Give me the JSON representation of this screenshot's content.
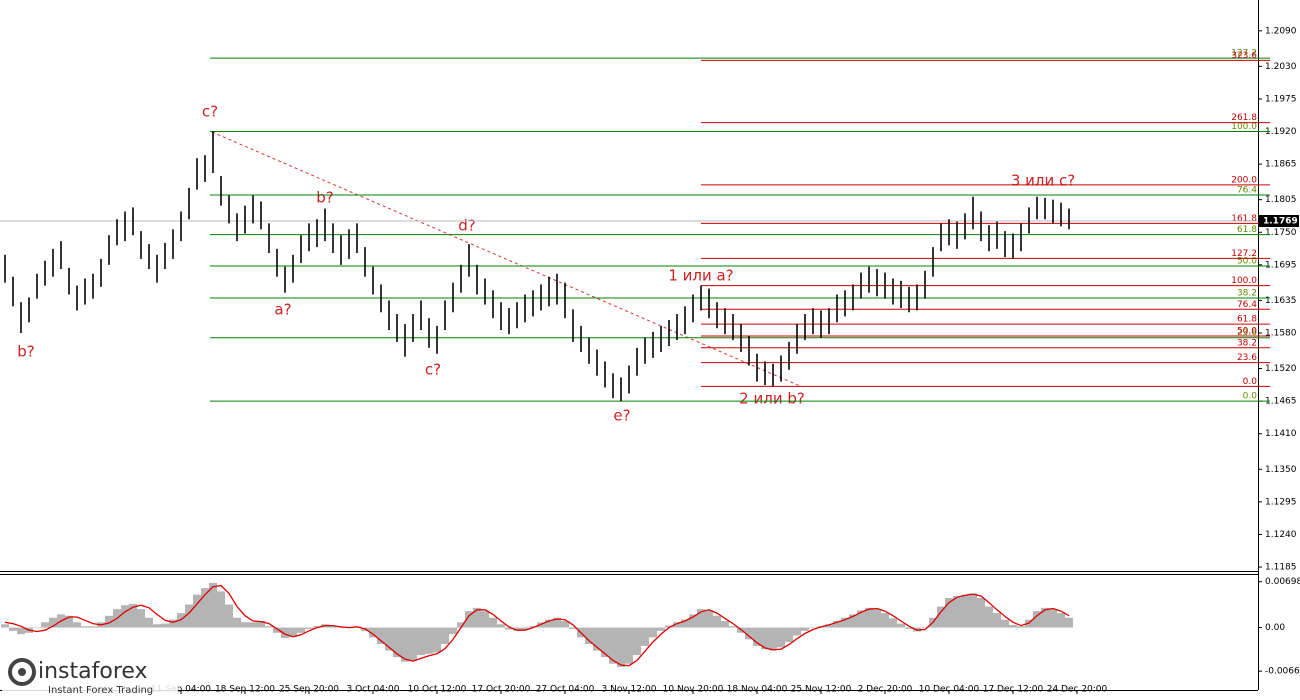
{
  "chart_data": {
    "type": "hlbar",
    "color": "#000000",
    "xlim": [
      -0.625,
      156.625
    ],
    "xticks": [
      {
        "value": 22,
        "label": "11 Sep 04:00"
      },
      {
        "value": 30,
        "label": "18 Sep 12:00"
      },
      {
        "value": 38,
        "label": "25 Sep 20:00"
      },
      {
        "value": 46,
        "label": "3 Oct 04:00"
      },
      {
        "value": 54,
        "label": "10 Oct 12:00"
      },
      {
        "value": 62,
        "label": "17 Oct 20:00"
      },
      {
        "value": 70,
        "label": "27 Oct 04:00"
      },
      {
        "value": 78,
        "label": "3 Nov 12:00"
      },
      {
        "value": 86,
        "label": "10 Nov 20:00"
      },
      {
        "value": 94,
        "label": "18 Nov 04:00"
      },
      {
        "value": 102,
        "label": "25 Nov 12:00"
      },
      {
        "value": 110,
        "label": "2 Dec 20:00"
      },
      {
        "value": 118,
        "label": "10 Dec 04:00"
      },
      {
        "value": 126,
        "label": "17 Dec 12:00"
      },
      {
        "value": 134,
        "label": "24 Dec 20:00"
      }
    ],
    "ylim": [
      1.118,
      1.2142
    ],
    "yticks": [
      {
        "value": 1.209,
        "label": "1.2090"
      },
      {
        "value": 1.203,
        "label": "1.2030"
      },
      1.1975,
      {
        "value": 1.192,
        "label": "1.1920"
      },
      1.1865,
      1.1805,
      {
        "value": 1.175,
        "label": "1.1750"
      },
      1.1695,
      1.1635,
      {
        "value": 1.158,
        "label": "1.1580"
      },
      {
        "value": 1.152,
        "label": "1.1520"
      },
      1.1465,
      {
        "value": 1.141,
        "label": "1.1410"
      },
      {
        "value": 1.135,
        "label": "1.1350"
      },
      1.1295,
      {
        "value": 1.124,
        "label": "1.1240"
      },
      1.1185
    ],
    "current_price": 1.1769,
    "high": [
      1.1712,
      1.1675,
      1.1632,
      1.164,
      1.168,
      1.1702,
      1.1722,
      1.1735,
      1.169,
      1.166,
      1.1672,
      1.168,
      1.1705,
      1.1745,
      1.1772,
      1.1785,
      1.1792,
      1.1752,
      1.173,
      1.1712,
      1.1732,
      1.1755,
      1.1785,
      1.1825,
      1.1875,
      1.188,
      1.192,
      1.1845,
      1.1812,
      1.1782,
      1.1795,
      1.1812,
      1.1802,
      1.1765,
      1.1722,
      1.1692,
      1.1712,
      1.1745,
      1.1765,
      1.1772,
      1.179,
      1.1765,
      1.1745,
      1.1755,
      1.1765,
      1.1725,
      1.1692,
      1.1662,
      1.1635,
      1.1612,
      1.1595,
      1.1612,
      1.1635,
      1.1605,
      1.1592,
      1.1635,
      1.1665,
      1.1695,
      1.173,
      1.1695,
      1.1672,
      1.1652,
      1.1632,
      1.1622,
      1.1632,
      1.1645,
      1.1652,
      1.1662,
      1.1675,
      1.168,
      1.1665,
      1.162,
      1.1592,
      1.1572,
      1.1552,
      1.1532,
      1.1512,
      1.1505,
      1.1525,
      1.1555,
      1.1572,
      1.1582,
      1.1592,
      1.1602,
      1.1612,
      1.1625,
      1.1645,
      1.166,
      1.1655,
      1.1632,
      1.1622,
      1.1612,
      1.1595,
      1.1575,
      1.1545,
      1.1532,
      1.1528,
      1.1542,
      1.1565,
      1.1595,
      1.1612,
      1.1622,
      1.1618,
      1.1622,
      1.1645,
      1.1652,
      1.1662,
      1.1682,
      1.1692,
      1.1688,
      1.1682,
      1.1672,
      1.1668,
      1.1658,
      1.1662,
      1.1685,
      1.1725,
      1.1765,
      1.1772,
      1.1768,
      1.1782,
      1.181,
      1.1785,
      1.1762,
      1.1768,
      1.1752,
      1.1748,
      1.1765,
      1.1792,
      1.181,
      1.1808,
      1.1805,
      1.18,
      1.179
    ],
    "low": [
      1.1665,
      1.1625,
      1.158,
      1.1598,
      1.1638,
      1.166,
      1.1675,
      1.1688,
      1.1645,
      1.1618,
      1.1628,
      1.1638,
      1.1658,
      1.1695,
      1.1728,
      1.1735,
      1.1745,
      1.1705,
      1.1688,
      1.1665,
      1.1688,
      1.1705,
      1.1735,
      1.1772,
      1.1822,
      1.1835,
      1.185,
      1.1795,
      1.1765,
      1.1735,
      1.1748,
      1.1765,
      1.1755,
      1.1715,
      1.1675,
      1.1648,
      1.1665,
      1.1698,
      1.1718,
      1.1725,
      1.1735,
      1.1715,
      1.1695,
      1.1705,
      1.1715,
      1.1675,
      1.1645,
      1.1615,
      1.1585,
      1.1565,
      1.154,
      1.1565,
      1.1585,
      1.1555,
      1.1545,
      1.1585,
      1.1615,
      1.1648,
      1.1675,
      1.1645,
      1.1628,
      1.1605,
      1.1585,
      1.1578,
      1.1588,
      1.1598,
      1.1608,
      1.1618,
      1.1625,
      1.1628,
      1.1605,
      1.1565,
      1.1548,
      1.1528,
      1.1508,
      1.1488,
      1.147,
      1.1465,
      1.1478,
      1.1508,
      1.1528,
      1.1538,
      1.1548,
      1.1558,
      1.1568,
      1.1578,
      1.1598,
      1.1618,
      1.1605,
      1.1588,
      1.1578,
      1.1568,
      1.1548,
      1.1525,
      1.1498,
      1.1492,
      1.149,
      1.1498,
      1.1518,
      1.1545,
      1.1568,
      1.1578,
      1.1572,
      1.1578,
      1.1598,
      1.1608,
      1.1618,
      1.1638,
      1.1648,
      1.1642,
      1.1638,
      1.1628,
      1.1622,
      1.1615,
      1.1618,
      1.1638,
      1.1675,
      1.1718,
      1.1728,
      1.1722,
      1.1738,
      1.1755,
      1.1735,
      1.1718,
      1.1722,
      1.1708,
      1.1705,
      1.1718,
      1.1748,
      1.1772,
      1.1772,
      1.1765,
      1.176,
      1.1755
    ],
    "fib_green": {
      "color": "#008000",
      "levels": [
        {
          "price": 1.2044,
          "label": "127.2"
        },
        {
          "price": 1.192,
          "label": "100.0"
        },
        {
          "price": 1.1813,
          "label": "76.4"
        },
        {
          "price": 1.1746,
          "label": "61.8"
        },
        {
          "price": 1.1693,
          "label": "50.0"
        },
        {
          "price": 1.1639,
          "label": "38.2"
        },
        {
          "price": 1.1572,
          "label": "23.6"
        },
        {
          "price": 1.1465,
          "label": "0.0"
        }
      ]
    },
    "fib_red": {
      "color": "#cc0000",
      "levels": [
        {
          "price": 1.204,
          "label": "323.6"
        },
        {
          "price": 1.1935,
          "label": "261.8"
        },
        {
          "price": 1.183,
          "label": "200.0"
        },
        {
          "price": 1.1765,
          "label": "161.8"
        },
        {
          "price": 1.1706,
          "label": "127.2"
        },
        {
          "price": 1.166,
          "label": "100.0"
        },
        {
          "price": 1.162,
          "label": "76.4"
        },
        {
          "price": 1.1595,
          "label": "61.8"
        },
        {
          "price": 1.1575,
          "label": "50.0"
        },
        {
          "price": 1.1555,
          "label": "38.2"
        },
        {
          "price": 1.153,
          "label": "23.6"
        },
        {
          "price": 1.149,
          "label": "0.0"
        }
      ]
    },
    "annotations": [
      "b?",
      "c?",
      "a?",
      "b?",
      "c?",
      "d?",
      "e?",
      "1 или a?",
      "2 или b?",
      "3 или c?"
    ],
    "oscillator": {
      "type": "histogram-signal",
      "hist_color": "#b4b4b4",
      "signal_color": "#e00000",
      "ylim": [
        -0.0092,
        0.008
      ],
      "yticks": [
        {
          "value": 0.00698,
          "label": "0.00698"
        },
        {
          "value": 0,
          "label": "0.00"
        },
        {
          "value": -0.00664,
          "label": "-0.00664"
        }
      ],
      "histogram": [
        0.0005,
        -0.0005,
        -0.001,
        -0.0008,
        0.0,
        0.0008,
        0.0015,
        0.002,
        0.0018,
        0.0008,
        0.0002,
        0.0002,
        0.0008,
        0.0018,
        0.0028,
        0.0034,
        0.0036,
        0.0028,
        0.0015,
        0.0005,
        0.0006,
        0.0012,
        0.0022,
        0.0035,
        0.005,
        0.006,
        0.0068,
        0.0055,
        0.0035,
        0.0015,
        0.0008,
        0.0008,
        0.001,
        0.0002,
        -0.0008,
        -0.0016,
        -0.0014,
        -0.0008,
        -0.0002,
        0.0002,
        0.0005,
        0.0003,
        0.0,
        0.0,
        0.0002,
        -0.0005,
        -0.0015,
        -0.0025,
        -0.0035,
        -0.0045,
        -0.0052,
        -0.005,
        -0.0042,
        -0.004,
        -0.0038,
        -0.0025,
        -0.001,
        0.0008,
        0.0025,
        0.003,
        0.0025,
        0.0015,
        0.0005,
        -0.0003,
        -0.0005,
        -0.0003,
        0.0002,
        0.0008,
        0.0012,
        0.0015,
        0.001,
        -0.0002,
        -0.0015,
        -0.0025,
        -0.0035,
        -0.0045,
        -0.0055,
        -0.006,
        -0.0055,
        -0.0042,
        -0.0028,
        -0.0015,
        -0.0005,
        0.0003,
        0.0008,
        0.0012,
        0.002,
        0.0028,
        0.0026,
        0.0018,
        0.001,
        0.0002,
        -0.0008,
        -0.0018,
        -0.0028,
        -0.0033,
        -0.0035,
        -0.003,
        -0.0022,
        -0.0012,
        -0.0005,
        0.0,
        0.0002,
        0.0005,
        0.001,
        0.0015,
        0.002,
        0.0026,
        0.003,
        0.0028,
        0.0022,
        0.0014,
        0.0006,
        -0.0002,
        -0.0006,
        0.0,
        0.0015,
        0.0032,
        0.0045,
        0.0048,
        0.005,
        0.0052,
        0.0045,
        0.0032,
        0.0022,
        0.0012,
        0.0004,
        0.0002,
        0.0012,
        0.0025,
        0.003,
        0.0028,
        0.0022,
        0.0015
      ],
      "signal": [
        0.0008,
        0.0006,
        0.0002,
        -0.0004,
        -0.0006,
        -0.0004,
        0.0002,
        0.001,
        0.0016,
        0.0016,
        0.0011,
        0.0006,
        0.0004,
        0.0007,
        0.0014,
        0.0024,
        0.0031,
        0.0034,
        0.003,
        0.002,
        0.0011,
        0.0008,
        0.0012,
        0.0022,
        0.0036,
        0.005,
        0.0062,
        0.0064,
        0.0052,
        0.0032,
        0.0018,
        0.001,
        0.0009,
        0.0006,
        -0.0002,
        -0.001,
        -0.0014,
        -0.0011,
        -0.0005,
        0.0,
        0.0003,
        0.0003,
        0.0001,
        0.0,
        0.0001,
        -0.0002,
        -0.001,
        -0.002,
        -0.003,
        -0.004,
        -0.0048,
        -0.0051,
        -0.0047,
        -0.0043,
        -0.004,
        -0.0032,
        -0.0018,
        0.0,
        0.0018,
        0.0027,
        0.0027,
        0.002,
        0.001,
        0.0001,
        -0.0004,
        -0.0004,
        0.0,
        0.0005,
        0.001,
        0.0013,
        0.0012,
        0.0004,
        -0.0008,
        -0.002,
        -0.003,
        -0.004,
        -0.005,
        -0.0057,
        -0.0058,
        -0.005,
        -0.0036,
        -0.0022,
        -0.001,
        0.0,
        0.0006,
        0.001,
        0.0016,
        0.0024,
        0.0027,
        0.0022,
        0.0014,
        0.0006,
        -0.0003,
        -0.0013,
        -0.0023,
        -0.0031,
        -0.0034,
        -0.0033,
        -0.0026,
        -0.0017,
        -0.0009,
        -0.0003,
        0.0001,
        0.0004,
        0.0008,
        0.0012,
        0.0017,
        0.0023,
        0.0028,
        0.0029,
        0.0025,
        0.0018,
        0.001,
        0.0002,
        -0.0004,
        -0.0003,
        0.0008,
        0.0024,
        0.0038,
        0.0046,
        0.0049,
        0.0051,
        0.0048,
        0.0038,
        0.0027,
        0.0017,
        0.0008,
        0.0003,
        0.0007,
        0.0018,
        0.0027,
        0.0029,
        0.0025,
        0.0018
      ]
    }
  },
  "branding": {
    "name": "instaforex",
    "tagline": "Instant Forex Trading"
  }
}
